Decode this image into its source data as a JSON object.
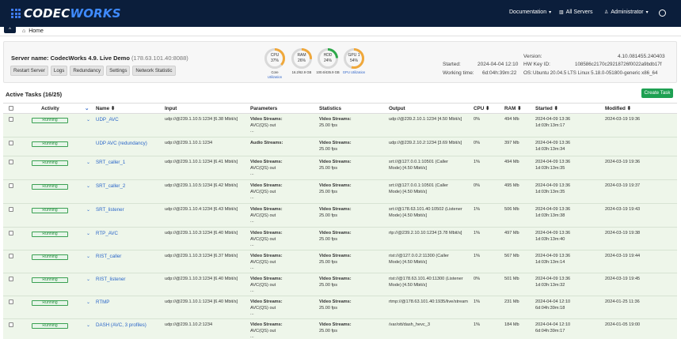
{
  "brand": {
    "pre": "CODEC",
    "post": "WORKS"
  },
  "topnav": {
    "documentation": "Documentation",
    "all_servers": "All Servers",
    "user": "Administrator"
  },
  "breadcrumb": {
    "toggle": "^",
    "home": "Home"
  },
  "server": {
    "title": "Server name: CodecWorks 4.9. Live Demo",
    "ip": "(178.63.101.40:8088)",
    "buttons": [
      "Restart Server",
      "Logs",
      "Redundancy",
      "Settings",
      "Network Statistic"
    ]
  },
  "gauges": [
    {
      "name": "CPU",
      "value": "37%",
      "percent": 37,
      "color": "#f0a83a",
      "sub1": "Core",
      "sub2": "Utilization",
      "sub_blue": true
    },
    {
      "name": "RAM",
      "value": "26%",
      "percent": 26,
      "color": "#f0a83a",
      "sub1": "16.2/62.9 GB",
      "sub2": "",
      "sub_blue": false
    },
    {
      "name": "HDD",
      "value": "24%",
      "percent": 24,
      "color": "#2ea84a",
      "sub1": "100.6/435.9 GB",
      "sub2": "",
      "sub_blue": false
    },
    {
      "name": "GPU 1",
      "value": "54%",
      "percent": 54,
      "color": "#f0a83a",
      "sub1": "GPU Utilization",
      "sub2": "",
      "sub_blue": true
    }
  ],
  "info": {
    "started_label": "Started:",
    "started_value": "2024-04-04 12:10",
    "working_label": "Working time:",
    "working_value": "6d:04h:39m:22",
    "version_label": "Version:",
    "version_value": "4.10.081455.240403",
    "hwkey_label": "HW Key ID:",
    "hwkey_value": "108586c2170c29218726f0022a9bdb17f",
    "os_label": "OS:",
    "os_value": "Ubuntu 20.04.5 LTS Linux 5.18.0-051800-generic x86_64"
  },
  "tasks": {
    "title": "Active Tasks (16/25)",
    "create_label": "Create Task",
    "columns": {
      "activity": "Activity",
      "name": "Name",
      "input": "Input",
      "parameters": "Parameters",
      "statistics": "Statistics",
      "output": "Output",
      "cpu": "CPU",
      "ram": "RAM",
      "started": "Started",
      "modified": "Modified"
    },
    "sort_glyph": "⬍",
    "rows": [
      {
        "status": "Running",
        "chevron": true,
        "name": "UDP_AVC",
        "input": "udp://@239.1.10.5:1234 [6.38 Mbit/s]",
        "params": [
          "Video Streams:",
          "AVC(QS) out",
          "..."
        ],
        "stats": [
          "Video Streams:",
          "25.00 fps"
        ],
        "output": [
          "udp://@239.2.10.1:1234 [4.50 Mbit/s]"
        ],
        "cpu": "0%",
        "ram": "494 Mb",
        "started": [
          "2024-04-09 13:36",
          "1d:03h:13m:17"
        ],
        "modified": "2024-03-19 19:36"
      },
      {
        "status": "Running",
        "chevron": false,
        "name": "UDP AVC (redundancy)",
        "input": "udp://@239.1.10.1:1234",
        "params": [
          "Audio Streams:"
        ],
        "stats": [
          "Video Streams:",
          "25.00 fps"
        ],
        "output": [
          "udp://@239.2.10.2:1234 [3.69 Mbit/s]"
        ],
        "cpu": "0%",
        "ram": "397 Mb",
        "started": [
          "2024-04-09 13:36",
          "1d:03h:13m:34"
        ],
        "modified": ""
      },
      {
        "status": "Running",
        "chevron": true,
        "name": "SRT_caller_1",
        "input": "udp://@239.1.10.1:1234 [6.41 Mbit/s]",
        "params": [
          "Video Streams:",
          "AVC(QS) out",
          "..."
        ],
        "stats": [
          "Video Streams:",
          "25.00 fps"
        ],
        "output": [
          "srt://@127.0.0.1:10501 (Caller",
          "Mode) [4.50 Mbit/s]"
        ],
        "cpu": "1%",
        "ram": "494 Mb",
        "started": [
          "2024-04-09 13:36",
          "1d:03h:13m:35"
        ],
        "modified": "2024-03-19 19:36"
      },
      {
        "status": "Running",
        "chevron": true,
        "name": "SRT_caller_2",
        "input": "udp://@239.1.10.5:1234 [6.42 Mbit/s]",
        "params": [
          "Video Streams:",
          "AVC(QS) out",
          "..."
        ],
        "stats": [
          "Video Streams:",
          "25.00 fps"
        ],
        "output": [
          "srt://@127.0.0.1:10501 (Caller",
          "Mode) [4.50 Mbit/s]"
        ],
        "cpu": "0%",
        "ram": "495 Mb",
        "started": [
          "2024-04-09 13:36",
          "1d:03h:13m:35"
        ],
        "modified": "2024-03-19 19:37"
      },
      {
        "status": "Running",
        "chevron": true,
        "name": "SRT_listener",
        "input": "udp://@239.1.10.4:1234 [6.43 Mbit/s]",
        "params": [
          "Video Streams:",
          "AVC(QS) out",
          "..."
        ],
        "stats": [
          "Video Streams:",
          "25.00 fps"
        ],
        "output": [
          "srt://@178.63.101.40:10502 (Listener",
          "Mode) [4.50 Mbit/s]"
        ],
        "cpu": "1%",
        "ram": "506 Mb",
        "started": [
          "2024-04-09 13:36",
          "1d:03h:13m:38"
        ],
        "modified": "2024-03-19 19:43"
      },
      {
        "status": "Running",
        "chevron": true,
        "name": "RTP_AVC",
        "input": "udp://@239.1.10.3:1234 [6.40 Mbit/s]",
        "params": [
          "Video Streams:",
          "AVC(QS) out",
          "..."
        ],
        "stats": [
          "Video Streams:",
          "25.00 fps"
        ],
        "output": [
          "rtp://@239.2.10.10:1234 [3.78 Mbit/s]"
        ],
        "cpu": "1%",
        "ram": "497 Mb",
        "started": [
          "2024-04-09 13:36",
          "1d:03h:13m:40"
        ],
        "modified": "2024-03-19 19:38"
      },
      {
        "status": "Running",
        "chevron": true,
        "name": "RIST_caller",
        "input": "udp://@239.1.10.3:1234 [6.37 Mbit/s]",
        "params": [
          "Video Streams:",
          "AVC(QS) out",
          "..."
        ],
        "stats": [
          "Video Streams:",
          "25.00 fps"
        ],
        "output": [
          "rist://@127.0.0.2:11300 (Caller",
          "Mode) [4.50 Mbit/s]"
        ],
        "cpu": "1%",
        "ram": "567 Mb",
        "started": [
          "2024-04-09 13:36",
          "1d:03h:13m:14"
        ],
        "modified": "2024-03-19 19:44"
      },
      {
        "status": "Running",
        "chevron": true,
        "name": "RIST_listener",
        "input": "udp://@239.1.10.3:1234 [6.40 Mbit/s]",
        "params": [
          "Video Streams:",
          "AVC(QS) out",
          "..."
        ],
        "stats": [
          "Video Streams:",
          "25.00 fps"
        ],
        "output": [
          "rist://@178.63.101.40:11300 (Listener",
          "Mode) [4.50 Mbit/s]"
        ],
        "cpu": "0%",
        "ram": "501 Mb",
        "started": [
          "2024-04-09 13:36",
          "1d:03h:13m:32"
        ],
        "modified": "2024-03-19 19:45"
      },
      {
        "status": "Running",
        "chevron": true,
        "name": "RTMP",
        "input": "udp://@239.1.10.1:1234 [6.40 Mbit/s]",
        "params": [
          "Video Streams:",
          "AVC(QS) out",
          "..."
        ],
        "stats": [
          "Video Streams:",
          "25.00 fps"
        ],
        "output": [
          "rtmp://@178.63.101.40:1935/live/stream"
        ],
        "cpu": "1%",
        "ram": "231 Mb",
        "started": [
          "2024-04-04 12:10",
          "6d:04h:39m:18"
        ],
        "modified": "2024-01-25 11:36"
      },
      {
        "status": "Running",
        "chevron": true,
        "name": "DASH (AVC, 3 profiles)",
        "input": "udp://@239.1.10.2:1234",
        "params": [
          "Video Streams:",
          "AVC(QS) out",
          "..."
        ],
        "stats": [
          "Video Streams:",
          "25.00 fps"
        ],
        "output": [
          "/var/ott/dash_hevc_3"
        ],
        "cpu": "1%",
        "ram": "184 Mb",
        "started": [
          "2024-04-04 12:10",
          "6d:04h:39m:17"
        ],
        "modified": "2024-01-05 19:00"
      }
    ]
  }
}
